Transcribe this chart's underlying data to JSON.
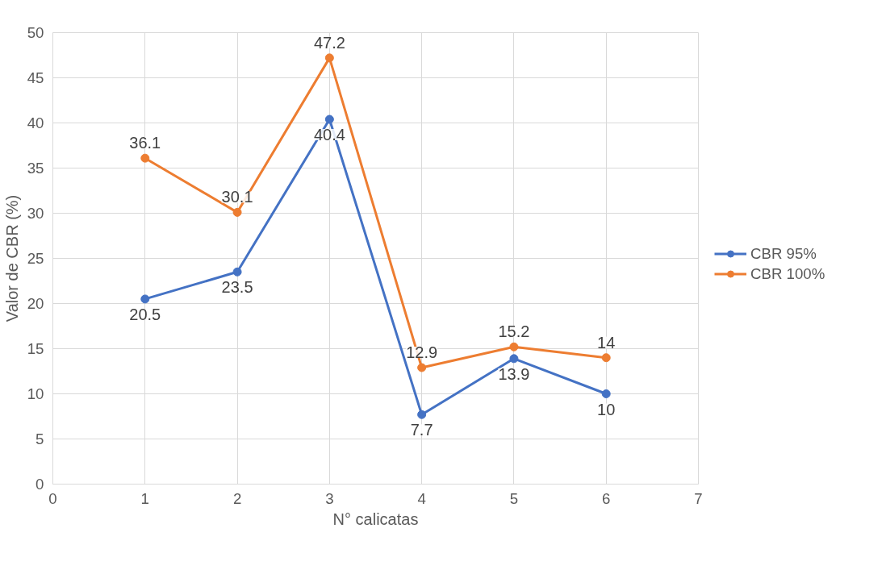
{
  "chart_data": {
    "type": "line",
    "xlabel": "N° calicatas",
    "ylabel": "Valor de CBR (%)",
    "x": [
      1,
      2,
      3,
      4,
      5,
      6
    ],
    "series": [
      {
        "name": "CBR 95%",
        "color": "#4472c4",
        "values": [
          20.5,
          23.5,
          40.4,
          7.7,
          13.9,
          10
        ]
      },
      {
        "name": "CBR 100%",
        "color": "#ed7d31",
        "values": [
          36.1,
          30.1,
          47.2,
          12.9,
          15.2,
          14
        ]
      }
    ],
    "xlim": [
      0,
      7
    ],
    "xticks": [
      0,
      1,
      2,
      3,
      4,
      5,
      6,
      7
    ],
    "ylim": [
      0,
      50
    ],
    "yticks": [
      0,
      5,
      10,
      15,
      20,
      25,
      30,
      35,
      40,
      45,
      50
    ],
    "grid": true,
    "legend": "right",
    "marker": "circle",
    "line_style": "solid",
    "data_labels": true
  }
}
